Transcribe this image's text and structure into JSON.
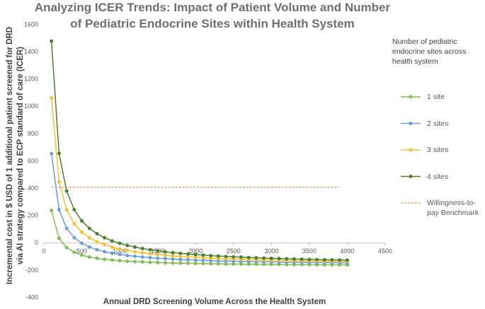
{
  "chart_data": {
    "type": "line",
    "title": "Analyzing ICER Trends: Impact of Patient Volume and Number of Pediatric Endocrine Sites within Health System",
    "x_label": "Annual DRD Screening Volume Across the Health System",
    "y_label": "Incremental cost in $ USD of 1 additional patient screened for DRD via AI strategy compared to ECP standard of care (ICER)",
    "legend_title": "Number of pediatric endocrine sites across health system",
    "legend_position": "right",
    "grid": false,
    "xlim": [
      0,
      4500
    ],
    "xticks": [
      0,
      500,
      1000,
      1500,
      2000,
      2500,
      3000,
      3500,
      4000,
      4500
    ],
    "ylim": [
      -400,
      1600
    ],
    "yticks": [
      -400,
      -200,
      0,
      200,
      400,
      600,
      800,
      1000,
      1200,
      1400,
      1600
    ],
    "x": [
      100,
      200,
      300,
      400,
      500,
      600,
      700,
      800,
      900,
      1000,
      1100,
      1200,
      1300,
      1400,
      1500,
      1600,
      1700,
      1800,
      1900,
      2000,
      2100,
      2200,
      2300,
      2400,
      2500,
      2600,
      2700,
      2800,
      2900,
      3000,
      3100,
      3200,
      3300,
      3400,
      3500,
      3600,
      3700,
      3800,
      3900,
      4000
    ],
    "series": [
      {
        "name": "1 site",
        "color": "#7dbf55",
        "markers": true,
        "values": [
          240,
          35,
          -33,
          -67,
          -88,
          -102,
          -111,
          -119,
          -124,
          -129,
          -133,
          -136,
          -138,
          -141,
          -143,
          -144,
          -146,
          -147,
          -148,
          -149,
          -150,
          -151,
          -152,
          -153,
          -154,
          -154,
          -155,
          -155,
          -156,
          -156,
          -157,
          -157,
          -158,
          -158,
          -158,
          -159,
          -159,
          -159,
          -159,
          -160
        ]
      },
      {
        "name": "2 sites",
        "color": "#6a9fd6",
        "markers": true,
        "values": [
          655,
          245,
          108,
          40,
          -1,
          -29,
          -48,
          -63,
          -74,
          -83,
          -91,
          -97,
          -102,
          -107,
          -111,
          -114,
          -117,
          -120,
          -122,
          -124,
          -126,
          -128,
          -130,
          -131,
          -133,
          -134,
          -135,
          -136,
          -137,
          -138,
          -139,
          -140,
          -141,
          -141,
          -142,
          -143,
          -143,
          -144,
          -144,
          -145
        ]
      },
      {
        "name": "3 sites",
        "color": "#f5c133",
        "markers": true,
        "values": [
          1065,
          449,
          244,
          142,
          80,
          39,
          10,
          -12,
          -29,
          -43,
          -54,
          -63,
          -71,
          -78,
          -84,
          -89,
          -94,
          -98,
          -101,
          -104,
          -107,
          -110,
          -112,
          -115,
          -117,
          -119,
          -120,
          -122,
          -124,
          -125,
          -126,
          -128,
          -129,
          -130,
          -131,
          -132,
          -133,
          -134,
          -134,
          -135
        ]
      },
      {
        "name": "4 sites",
        "color": "#4e7f2f",
        "markers": true,
        "values": [
          1480,
          657,
          382,
          245,
          163,
          108,
          69,
          39,
          16,
          -2,
          -17,
          -29,
          -40,
          -49,
          -57,
          -64,
          -70,
          -75,
          -80,
          -84,
          -88,
          -92,
          -95,
          -98,
          -101,
          -103,
          -106,
          -108,
          -110,
          -112,
          -113,
          -115,
          -117,
          -118,
          -120,
          -121,
          -122,
          -123,
          -124,
          -125
        ]
      },
      {
        "name": "Willingness-to-pay Benchmark",
        "color": "#e0873a",
        "markers": false,
        "style": "dashed",
        "x": [
          100,
          3900
        ],
        "values": [
          410,
          410
        ]
      }
    ]
  }
}
